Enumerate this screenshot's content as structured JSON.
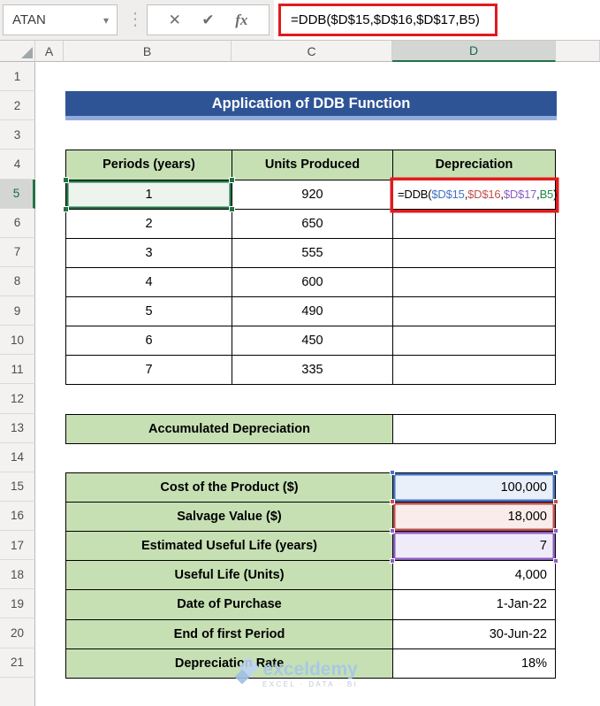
{
  "toolbar": {
    "name_box_value": "ATAN",
    "name_box_dropdown_icon": "▾",
    "separator_dots_icon": "⋮",
    "cancel_icon": "✕",
    "enter_icon": "✔",
    "insert_function_label": "fx",
    "formula_bar_text": "=DDB($D$15,$D$16,$D$17,B5)"
  },
  "sheet": {
    "column_headers": [
      "A",
      "B",
      "C",
      "D",
      ""
    ],
    "selected_column": "D",
    "row_headers": [
      "1",
      "2",
      "3",
      "4",
      "5",
      "6",
      "7",
      "8",
      "9",
      "10",
      "11",
      "12",
      "13",
      "14",
      "15",
      "16",
      "17",
      "18",
      "19",
      "20",
      "21"
    ],
    "selected_row": "5"
  },
  "title_banner": {
    "text": "Application of DDB Function"
  },
  "table1": {
    "headers": [
      "Periods (years)",
      "Units Produced",
      "Depreciation"
    ],
    "rows": [
      {
        "period": "1",
        "units": "920"
      },
      {
        "period": "2",
        "units": "650"
      },
      {
        "period": "3",
        "units": "555"
      },
      {
        "period": "4",
        "units": "600"
      },
      {
        "period": "5",
        "units": "490"
      },
      {
        "period": "6",
        "units": "450"
      },
      {
        "period": "7",
        "units": "335"
      }
    ],
    "formula_parts": [
      {
        "text": "=DDB(",
        "color": "#000000"
      },
      {
        "text": "$D$15",
        "color": "#4472C4"
      },
      {
        "text": ",",
        "color": "#000000"
      },
      {
        "text": "$D$16",
        "color": "#C0504D"
      },
      {
        "text": ",",
        "color": "#000000"
      },
      {
        "text": "$D$17",
        "color": "#8A5EC0"
      },
      {
        "text": ",",
        "color": "#000000"
      },
      {
        "text": "B5",
        "color": "#1E8745"
      },
      {
        "text": ")",
        "color": "#000000"
      }
    ]
  },
  "accumulated": {
    "label": "Accumulated Depreciation",
    "value": ""
  },
  "table2": {
    "rows": [
      {
        "label": "Cost of the Product ($)",
        "value": "100,000",
        "highlight": "blue"
      },
      {
        "label": "Salvage Value ($)",
        "value": "18,000",
        "highlight": "red"
      },
      {
        "label": "Estimated Useful Life (years)",
        "value": "7",
        "highlight": "purple"
      },
      {
        "label": "Useful Life (Units)",
        "value": "4,000",
        "highlight": ""
      },
      {
        "label": "Date of Purchase",
        "value": "1-Jan-22",
        "highlight": ""
      },
      {
        "label": "End of first Period",
        "value": "30-Jun-22",
        "highlight": ""
      },
      {
        "label": "Depreciation Rate",
        "value": "18%",
        "highlight": ""
      }
    ]
  },
  "watermark": {
    "brand": "exceldemy",
    "tagline": "EXCEL · DATA · BI"
  },
  "colors": {
    "title_bg": "#2F5496",
    "title_strip": "#8FAADC",
    "header_green": "#C6E0B4",
    "selection_green": "#217346",
    "annotation_red": "#E21A1D",
    "ref_blue": "#4472C4",
    "ref_red": "#C0504D",
    "ref_purple": "#8A5EC0",
    "ref_green": "#1E8745"
  }
}
